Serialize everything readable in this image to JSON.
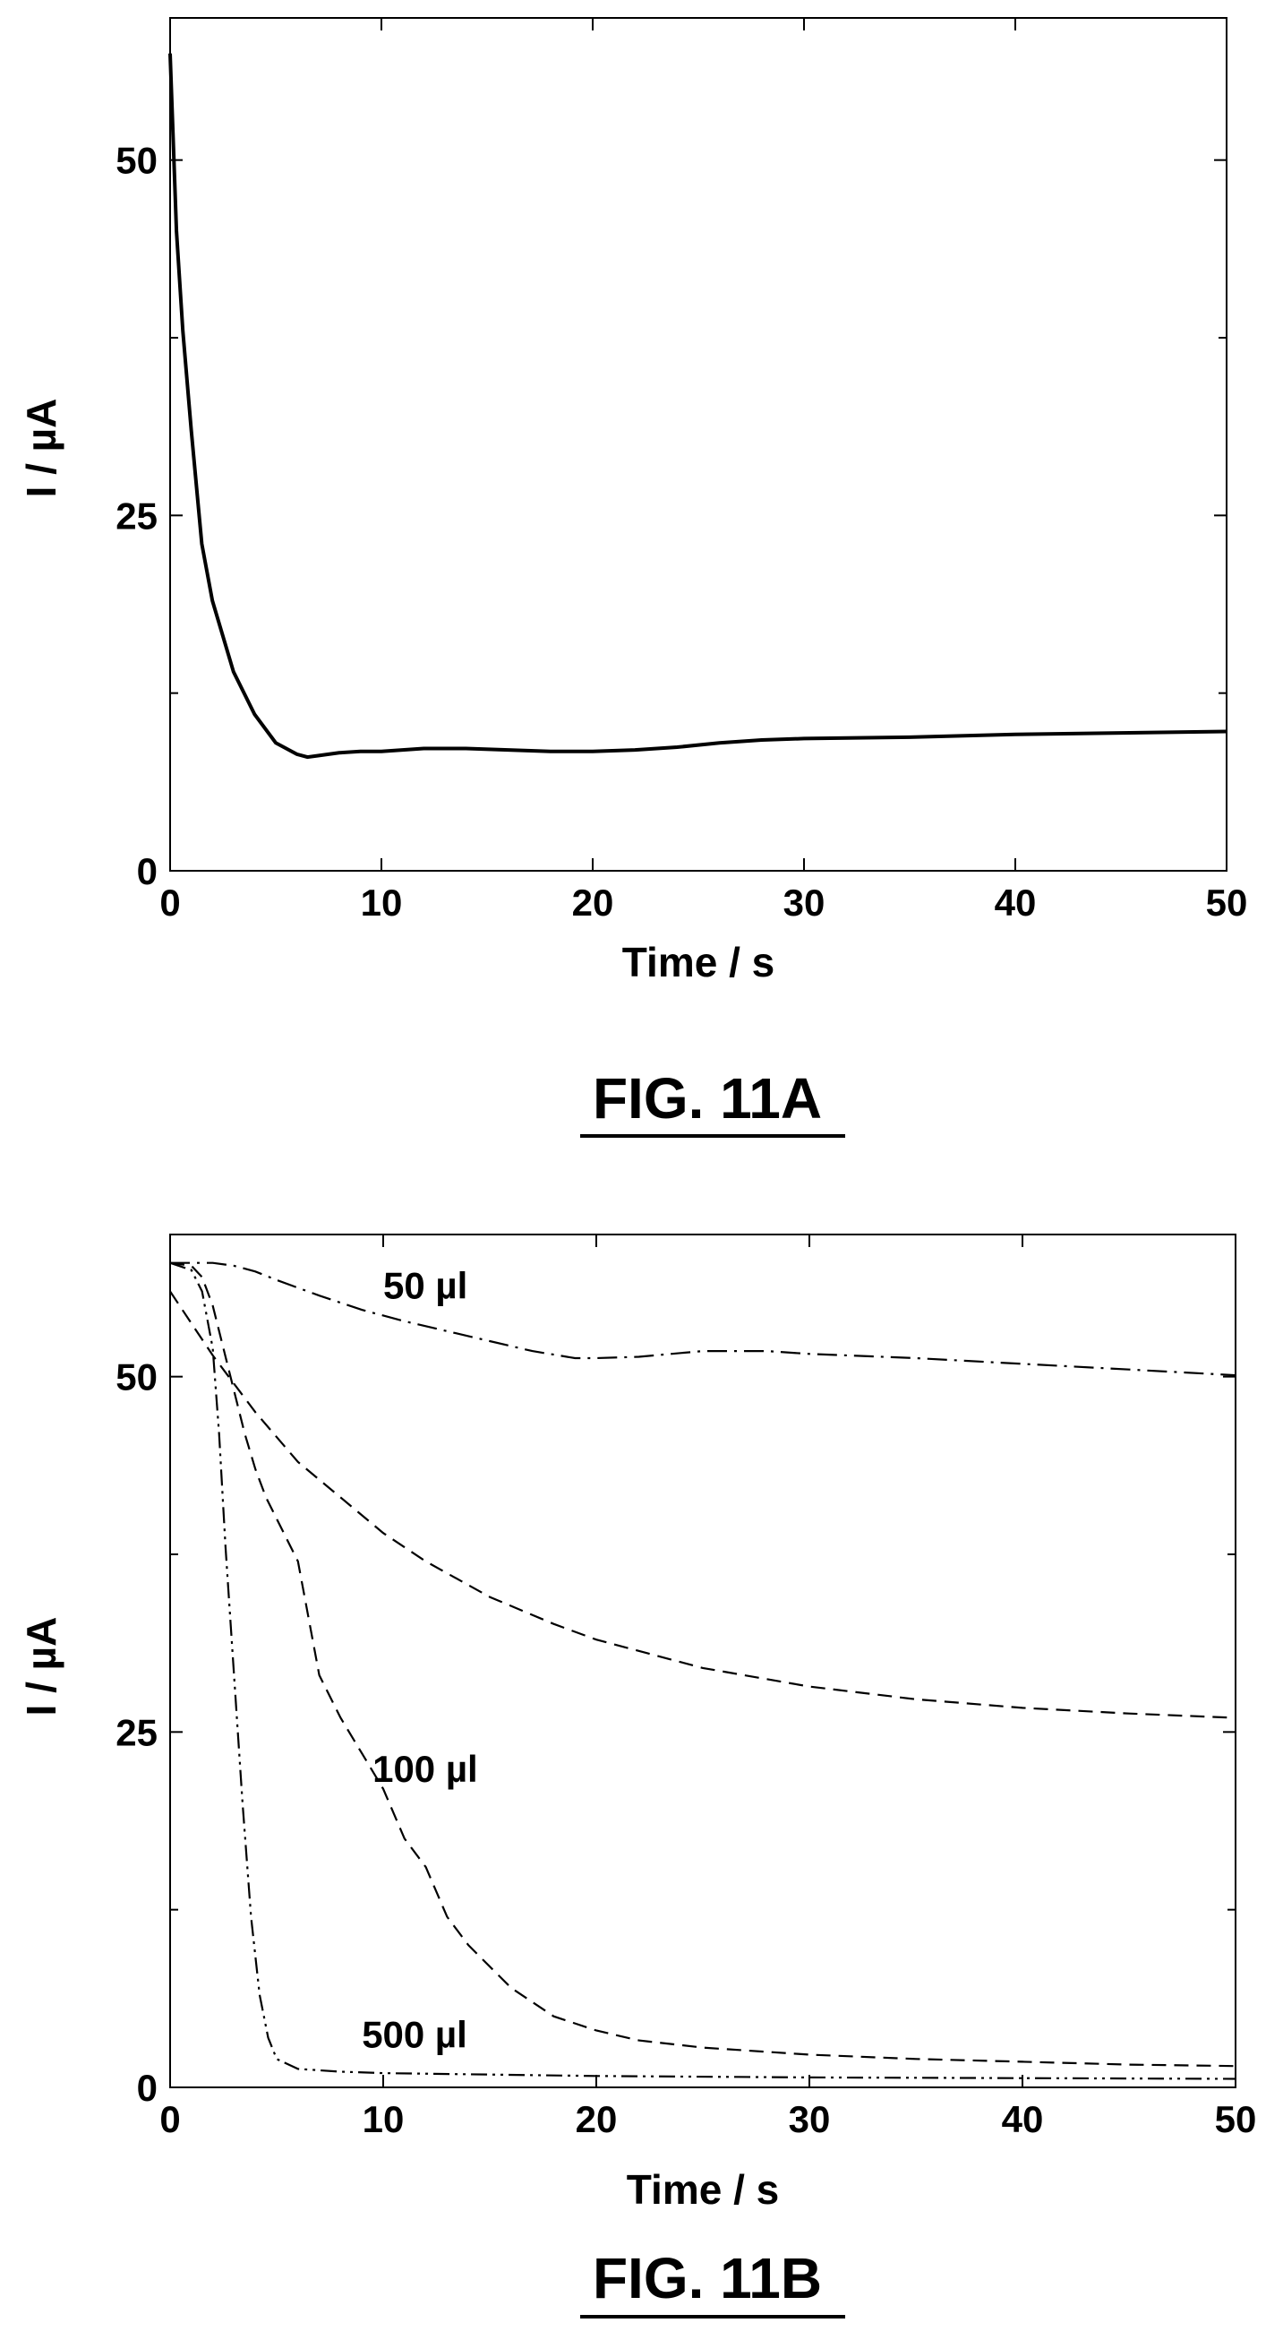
{
  "chart_data": [
    {
      "type": "line",
      "title": "",
      "caption": "FIG. 11A",
      "xlabel": "Time / s",
      "ylabel": "I / µA",
      "xlim": [
        0,
        50
      ],
      "ylim": [
        0,
        60
      ],
      "x_ticks": [
        0,
        10,
        20,
        30,
        40,
        50
      ],
      "y_ticks": [
        0,
        25,
        50
      ],
      "y_minor_ticks": [
        12.5,
        37.5
      ],
      "x_tick_labels": [
        "0",
        "10",
        "20",
        "30",
        "40",
        "50"
      ],
      "y_tick_labels": [
        "0",
        "25",
        "50"
      ],
      "grid": false,
      "series": [
        {
          "style": "solid",
          "x": [
            0,
            0.3,
            0.6,
            1,
            1.5,
            2,
            3,
            4,
            5,
            6,
            6.5,
            7,
            8,
            9,
            10,
            12,
            14,
            16,
            18,
            20,
            22,
            24,
            26,
            28,
            30,
            35,
            40,
            45,
            50
          ],
          "y": [
            57.5,
            45,
            38,
            31,
            23,
            19,
            14,
            11,
            9,
            8.2,
            8,
            8.1,
            8.3,
            8.4,
            8.4,
            8.6,
            8.6,
            8.5,
            8.4,
            8.4,
            8.5,
            8.7,
            9,
            9.2,
            9.3,
            9.4,
            9.6,
            9.7,
            9.8
          ]
        }
      ]
    },
    {
      "type": "line",
      "title": "",
      "caption": "FIG. 11B",
      "xlabel": "Time / s",
      "ylabel": "I / µA",
      "xlim": [
        0,
        50
      ],
      "ylim": [
        0,
        60
      ],
      "x_ticks": [
        0,
        10,
        20,
        30,
        40,
        50
      ],
      "y_ticks": [
        0,
        25,
        50
      ],
      "y_minor_ticks": [
        12.5,
        37.5
      ],
      "x_tick_labels": [
        "0",
        "10",
        "20",
        "30",
        "40",
        "50"
      ],
      "y_tick_labels": [
        "0",
        "25",
        "50"
      ],
      "grid": false,
      "series": [
        {
          "name": "50 µl",
          "style": "dashdot",
          "label_at": [
            10,
            55.5
          ],
          "x": [
            0,
            1,
            2,
            3,
            4,
            5,
            7,
            9,
            11,
            13,
            15,
            17,
            19,
            20,
            22,
            25,
            28,
            30,
            35,
            40,
            45,
            50
          ],
          "y": [
            58,
            58,
            58,
            57.8,
            57.4,
            56.8,
            55.7,
            54.7,
            53.9,
            53.2,
            52.5,
            51.8,
            51.3,
            51.3,
            51.4,
            51.8,
            51.8,
            51.6,
            51.3,
            50.9,
            50.5,
            50.1
          ]
        },
        {
          "name": "",
          "style": "dash",
          "x": [
            0,
            2,
            4,
            6,
            8,
            10,
            12,
            15,
            18,
            20,
            25,
            30,
            35,
            40,
            45,
            50
          ],
          "y": [
            56,
            51.5,
            47.5,
            44,
            41.5,
            39,
            37,
            34.5,
            32.6,
            31.5,
            29.5,
            28.2,
            27.3,
            26.7,
            26.3,
            26
          ]
        },
        {
          "name": "100 µl",
          "style": "dash",
          "label_at": [
            9.5,
            21.5
          ],
          "x": [
            0,
            1,
            1.5,
            2,
            2.5,
            3,
            3.5,
            4,
            4.5,
            5,
            6,
            6.5,
            7,
            8,
            9,
            10,
            11,
            12,
            13,
            14,
            16,
            18,
            20,
            22,
            25,
            30,
            35,
            40,
            45,
            50
          ],
          "y": [
            58,
            57.8,
            57,
            55,
            52,
            49,
            46,
            43.5,
            41.5,
            40,
            37,
            33,
            29,
            26,
            23.5,
            21,
            17.5,
            15.5,
            12,
            10,
            7,
            5,
            4,
            3.3,
            2.8,
            2.3,
            2,
            1.8,
            1.6,
            1.5
          ]
        },
        {
          "name": "500 µl",
          "style": "dashdotdot",
          "label_at": [
            9,
            2.8
          ],
          "x": [
            0,
            1,
            1.5,
            2,
            2.3,
            2.6,
            3,
            3.4,
            3.8,
            4.2,
            4.6,
            5,
            6,
            8,
            10,
            15,
            20,
            30,
            40,
            50
          ],
          "y": [
            58,
            57.5,
            56,
            52,
            46,
            38,
            29,
            20,
            12,
            6.5,
            3.5,
            2,
            1.3,
            1.1,
            1.0,
            0.9,
            0.8,
            0.7,
            0.65,
            0.6
          ]
        }
      ]
    }
  ]
}
